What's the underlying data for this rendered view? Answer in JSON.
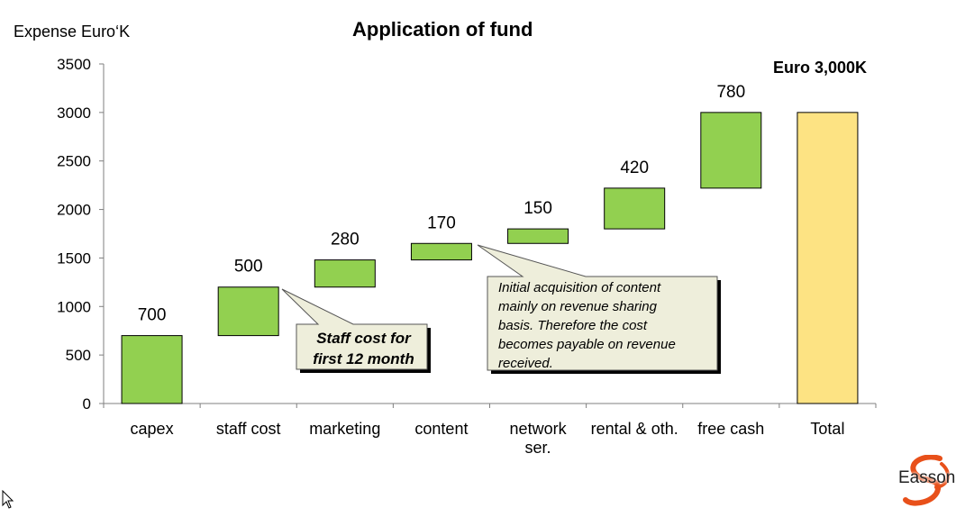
{
  "header": {
    "title": "Application of fund",
    "unit_label": "Expense  Euro‘K",
    "total_label": "Euro 3,000K"
  },
  "colors": {
    "increment_fill": "#92D050",
    "total_fill": "#FDE383",
    "callout_fill": "#EEEEDB",
    "axis": "#7f7f7f",
    "brand_orange": "#E8501A"
  },
  "callouts": {
    "staff": "Staff cost for\nfirst 12 month",
    "content": "Initial acquisition of content\n mainly on revenue  sharing\n basis. Therefore the cost\n becomes payable on  revenue\n received."
  },
  "brand": {
    "name": "Easson",
    "icon": "orange-swirl-logo"
  },
  "chart_data": {
    "type": "bar",
    "subtype": "waterfall",
    "title": "Application of fund",
    "ylabel": "Expense  Euro‘K",
    "ylim": [
      0,
      3500
    ],
    "yticks": [
      0,
      500,
      1000,
      1500,
      2000,
      2500,
      3000,
      3500
    ],
    "grid": false,
    "categories": [
      "capex",
      "staff cost",
      "marketing",
      "content",
      "network\nser.",
      "rental & oth.",
      "free cash",
      "Total"
    ],
    "values": [
      700,
      500,
      280,
      170,
      150,
      420,
      780,
      3000
    ],
    "starts": [
      0,
      700,
      1200,
      1480,
      1650,
      1800,
      2220,
      0
    ],
    "data_labels": [
      "700",
      "500",
      "280",
      "170",
      "150",
      "420",
      "780",
      ""
    ],
    "total_annotation": "Euro 3,000K"
  }
}
